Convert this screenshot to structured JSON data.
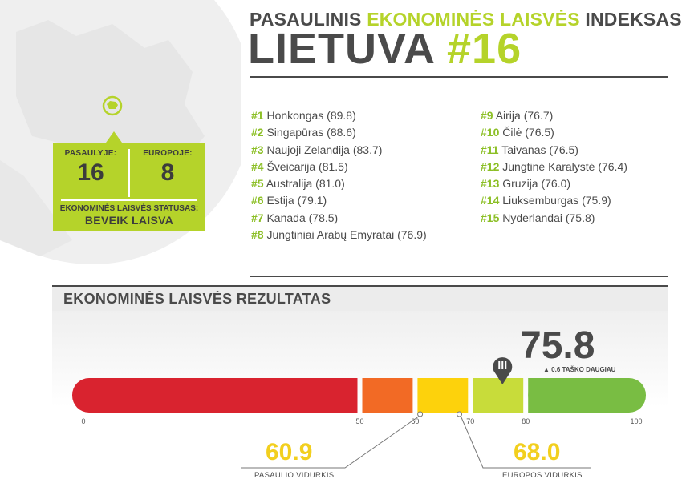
{
  "header": {
    "line1_a": "PASAULINIS",
    "line1_b": "EKONOMINĖS LAISVĖS",
    "line1_c": "INDEKSAS:",
    "country": "LIETUVA",
    "rank": "#16"
  },
  "stats": {
    "world_label": "PASAULYJE:",
    "world_value": "16",
    "europe_label": "EUROPOJE:",
    "europe_value": "8",
    "status_label": "EKONOMINĖS LAISVĖS STATUSAS:",
    "status_value": "BEVEIK LAISVA"
  },
  "ranking": {
    "left": [
      {
        "rank": "#1",
        "text": "Honkongas (89.8)"
      },
      {
        "rank": "#2",
        "text": "Singapūras (88.6)"
      },
      {
        "rank": "#3",
        "text": "Naujoji Zelandija (83.7)"
      },
      {
        "rank": "#4",
        "text": "Šveicarija (81.5)"
      },
      {
        "rank": "#5",
        "text": "Australija (81.0)"
      },
      {
        "rank": "#6",
        "text": "Estija (79.1)"
      },
      {
        "rank": "#7",
        "text": "Kanada (78.5)"
      },
      {
        "rank": "#8",
        "text": "Jungtiniai Arabų Emyratai (76.9)"
      }
    ],
    "right": [
      {
        "rank": "#9",
        "text": "Airija (76.7)"
      },
      {
        "rank": "#10",
        "text": "Čilė (76.5)"
      },
      {
        "rank": "#11",
        "text": "Taivanas (76.5)"
      },
      {
        "rank": "#12",
        "text": "Jungtinė Karalystė (76.4)"
      },
      {
        "rank": "#13",
        "text": "Gruzija (76.0)"
      },
      {
        "rank": "#14",
        "text": "Liuksemburgas (75.9)"
      },
      {
        "rank": "#15",
        "text": "Nyderlandai (75.8)"
      }
    ]
  },
  "result": {
    "section_title": "EKONOMINĖS LAISVĖS REZULTATAS",
    "score": "75.8",
    "score_value": 75.8,
    "score_note": "▲ 0.6 TAŠKO DAUGIAU",
    "world_avg": "60.9",
    "world_avg_value": 60.9,
    "world_avg_label": "PASAULIO VIDURKIS",
    "europe_avg": "68.0",
    "europe_avg_value": 68.0,
    "europe_avg_label": "EUROPOS VIDURKIS",
    "ticks": [
      "0",
      "50",
      "60",
      "70",
      "80",
      "100"
    ],
    "tick_values": [
      0,
      50,
      60,
      70,
      80,
      100
    ],
    "segments": [
      {
        "from": 0,
        "to": 50,
        "color": "#d9232f"
      },
      {
        "from": 50,
        "to": 60,
        "color": "#f26a25"
      },
      {
        "from": 60,
        "to": 70,
        "color": "#fdd20c"
      },
      {
        "from": 70,
        "to": 80,
        "color": "#c8dc3a"
      },
      {
        "from": 80,
        "to": 100,
        "color": "#79bd43"
      }
    ]
  },
  "colors": {
    "accent": "#b5d32a",
    "text": "#4a4a4a"
  },
  "icons": {
    "map_marker": "map-pin-icon",
    "score_marker": "marker-pin-icon"
  }
}
